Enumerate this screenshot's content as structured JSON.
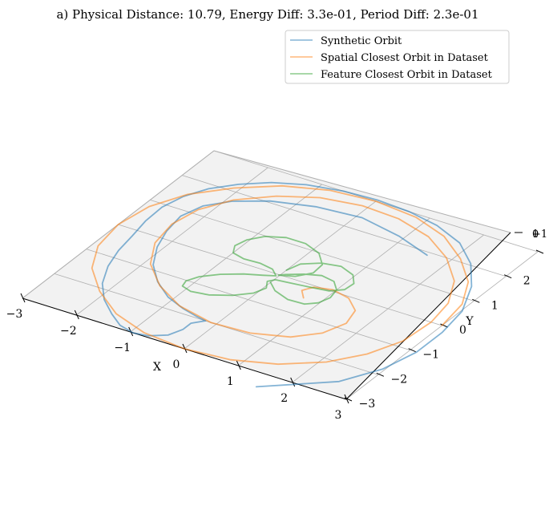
{
  "chart_data": {
    "type": "line",
    "projection": "3d",
    "title": "a) Physical Distance: 10.79, Energy Diff: 3.3e-01, Period Diff: 2.3e-01",
    "xlabel": "X",
    "ylabel": "Y",
    "xlim": [
      -3,
      3
    ],
    "ylim": [
      -3,
      3
    ],
    "zlim": [
      -1,
      1
    ],
    "x_ticks": [
      "−3",
      "−2",
      "−1",
      "0",
      "1",
      "2",
      "3"
    ],
    "y_ticks": [
      "−3",
      "−2",
      "−1",
      "0",
      "1",
      "2",
      "3"
    ],
    "grid": true,
    "legend_position": "top-right",
    "series": [
      {
        "name": "Synthetic Orbit",
        "color": "#1f77b4",
        "x": [
          1.6,
          2.6,
          2.96,
          3.12,
          3.12,
          3.02,
          2.72,
          2.32,
          1.82,
          1.22,
          0.62,
          0.0,
          -0.6,
          -1.2,
          -1.7,
          -2.1,
          -2.42,
          -2.62,
          -2.72,
          -2.7,
          -2.62,
          -2.55,
          -2.42,
          -2.2,
          -1.9,
          -1.55,
          -1.25,
          -0.95,
          -0.7,
          -0.45,
          -0.35,
          -0.35,
          -0.2,
          -0.4,
          -0.7,
          -1.1,
          -1.5,
          -1.85,
          -2.1,
          -2.25,
          -2.32,
          -2.2,
          -1.9,
          -1.4,
          -0.7,
          0.1,
          0.9,
          1.6
        ],
        "y": [
          -3.45,
          -2.55,
          -1.8,
          -1.0,
          -0.2,
          0.6,
          1.4,
          2.05,
          2.55,
          2.85,
          3.0,
          3.05,
          3.0,
          2.85,
          2.6,
          2.25,
          1.85,
          1.4,
          0.9,
          0.35,
          -0.2,
          -0.75,
          -1.3,
          -1.85,
          -2.3,
          -2.65,
          -2.9,
          -3.0,
          -2.95,
          -2.75,
          -2.45,
          -2.2,
          -2.0,
          -1.95,
          -1.85,
          -1.65,
          -1.3,
          -0.85,
          -0.3,
          0.25,
          0.8,
          1.3,
          1.7,
          2.05,
          2.3,
          2.4,
          2.2,
          1.9
        ]
      },
      {
        "name": "Spatial Closest Orbit in Dataset",
        "color": "#ff7f0e",
        "x": [
          3.0,
          2.9,
          2.6,
          2.1,
          1.5,
          0.8,
          0.0,
          -0.8,
          -1.5,
          -2.1,
          -2.6,
          -2.9,
          -3.0,
          -2.9,
          -2.6,
          -2.1,
          -1.5,
          -0.8,
          0.0,
          0.8,
          1.5,
          2.1,
          2.5,
          2.75,
          2.8,
          2.7,
          2.4,
          1.9,
          1.3,
          0.6,
          -0.1,
          -0.8,
          -1.4,
          -1.9,
          -2.2,
          -2.3,
          -2.2,
          -1.9,
          -1.4,
          -0.8,
          -0.1,
          0.6,
          1.2,
          1.55,
          1.7,
          1.6,
          1.3,
          0.95,
          0.65,
          0.55,
          0.7
        ],
        "y": [
          0.0,
          0.8,
          1.5,
          2.1,
          2.6,
          2.9,
          3.0,
          2.9,
          2.6,
          2.1,
          1.5,
          0.8,
          0.0,
          -0.8,
          -1.5,
          -2.1,
          -2.6,
          -2.9,
          -3.0,
          -2.9,
          -2.6,
          -2.1,
          -1.5,
          -0.8,
          0.0,
          0.7,
          1.4,
          2.0,
          2.45,
          2.7,
          2.75,
          2.6,
          2.25,
          1.75,
          1.15,
          0.5,
          -0.2,
          -0.85,
          -1.4,
          -1.8,
          -2.0,
          -1.95,
          -1.7,
          -1.3,
          -0.8,
          -0.35,
          -0.05,
          0.05,
          -0.05,
          -0.25,
          -0.45
        ]
      },
      {
        "name": "Feature Closest Orbit in Dataset",
        "color": "#2ca02c",
        "x": [
          0.0,
          0.2,
          0.52,
          0.82,
          0.98,
          1.05,
          1.0,
          0.82,
          0.56,
          0.3,
          0.06,
          -0.02,
          0.22,
          0.4,
          0.38,
          0.14,
          -0.2,
          -0.56,
          -0.86,
          -1.04,
          -1.1,
          -1.0,
          -0.76,
          -0.46,
          -0.2,
          -0.04,
          -0.22,
          -0.5,
          -0.8,
          -1.04,
          -1.14,
          -1.1,
          -0.9,
          -0.6,
          -0.28,
          -0.04,
          0.04,
          -0.06,
          0.02,
          0.26,
          0.6,
          0.92,
          1.1,
          1.12,
          0.96,
          0.66,
          0.34,
          0.08,
          0.0
        ],
        "y": [
          -0.3,
          -0.5,
          -0.64,
          -0.62,
          -0.46,
          -0.2,
          0.08,
          0.3,
          0.36,
          0.24,
          0.06,
          -0.02,
          0.1,
          0.36,
          0.68,
          0.98,
          1.14,
          1.14,
          0.98,
          0.72,
          0.44,
          0.22,
          0.14,
          0.16,
          0.1,
          -0.06,
          -0.16,
          -0.3,
          -0.52,
          -0.78,
          -1.02,
          -1.2,
          -1.28,
          -1.22,
          -1.02,
          -0.76,
          -0.5,
          -0.3,
          -0.18,
          -0.14,
          -0.08,
          -0.02,
          0.16,
          0.42,
          0.66,
          0.8,
          0.72,
          0.5,
          0.2
        ]
      }
    ]
  }
}
